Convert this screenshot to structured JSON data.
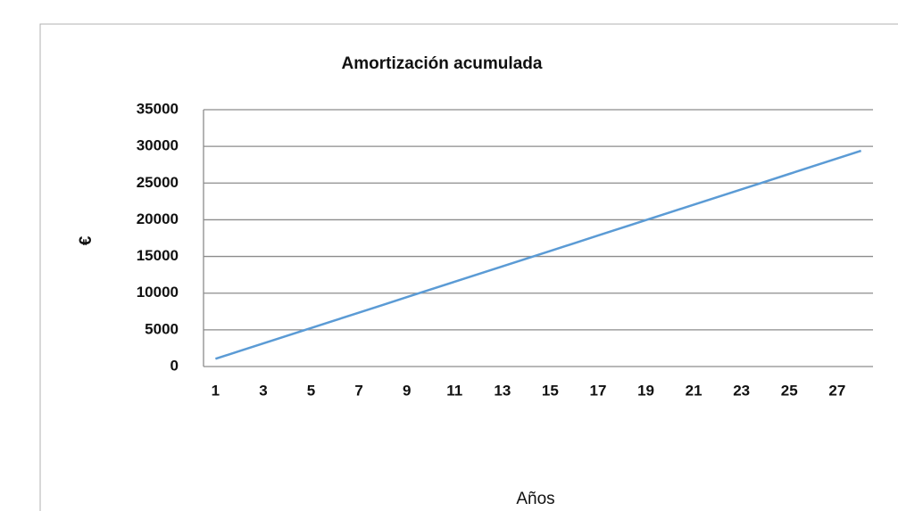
{
  "chart_data": {
    "type": "line",
    "title": "Amortización acumulada",
    "x_label": "Años",
    "y_label": "€",
    "categories": [
      1,
      null,
      3,
      null,
      5,
      null,
      7,
      null,
      9,
      null,
      11,
      null,
      13,
      null,
      15,
      null,
      17,
      null,
      19,
      null,
      21,
      null,
      23,
      null,
      25,
      null,
      27,
      null
    ],
    "series": [
      {
        "name": "Amortización acumulada",
        "color": "#5b9bd5",
        "values": [
          1050,
          2100,
          3150,
          4200,
          5250,
          6300,
          7350,
          8400,
          9450,
          10500,
          11550,
          12600,
          13650,
          14700,
          15750,
          16800,
          17850,
          18900,
          19950,
          21000,
          22050,
          23100,
          24150,
          25200,
          26250,
          27300,
          28350,
          29400
        ]
      }
    ],
    "ylim": [
      0,
      35000
    ],
    "yticks": [
      0,
      5000,
      10000,
      15000,
      20000,
      25000,
      30000,
      35000
    ],
    "grid": true,
    "legend": false
  }
}
